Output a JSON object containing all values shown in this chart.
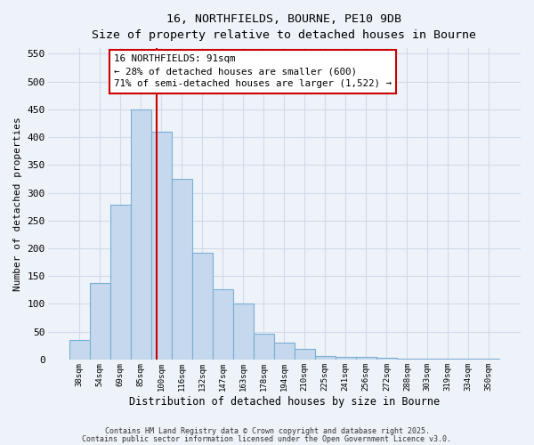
{
  "title1": "16, NORTHFIELDS, BOURNE, PE10 9DB",
  "title2": "Size of property relative to detached houses in Bourne",
  "xlabel": "Distribution of detached houses by size in Bourne",
  "ylabel": "Number of detached properties",
  "categories": [
    "38sqm",
    "54sqm",
    "69sqm",
    "85sqm",
    "100sqm",
    "116sqm",
    "132sqm",
    "147sqm",
    "163sqm",
    "178sqm",
    "194sqm",
    "210sqm",
    "225sqm",
    "241sqm",
    "256sqm",
    "272sqm",
    "288sqm",
    "303sqm",
    "319sqm",
    "334sqm",
    "350sqm"
  ],
  "values": [
    35,
    137,
    278,
    450,
    410,
    325,
    192,
    126,
    101,
    46,
    31,
    19,
    7,
    5,
    4,
    3,
    2,
    1,
    1,
    1,
    1
  ],
  "bar_color": "#c5d8ed",
  "bar_edge_color": "#7aafd4",
  "vline_color": "#cc0000",
  "annotation_line1": "16 NORTHFIELDS: 91sqm",
  "annotation_line2": "← 28% of detached houses are smaller (600)",
  "annotation_line3": "71% of semi-detached houses are larger (1,522) →",
  "annotation_box_color": "#ffffff",
  "annotation_box_edge_color": "#cc0000",
  "ylim": [
    0,
    560
  ],
  "yticks": [
    0,
    50,
    100,
    150,
    200,
    250,
    300,
    350,
    400,
    450,
    500,
    550
  ],
  "grid_color": "#d0dce8",
  "footnote1": "Contains HM Land Registry data © Crown copyright and database right 2025.",
  "footnote2": "Contains public sector information licensed under the Open Government Licence v3.0.",
  "bg_color": "#eef2f9"
}
